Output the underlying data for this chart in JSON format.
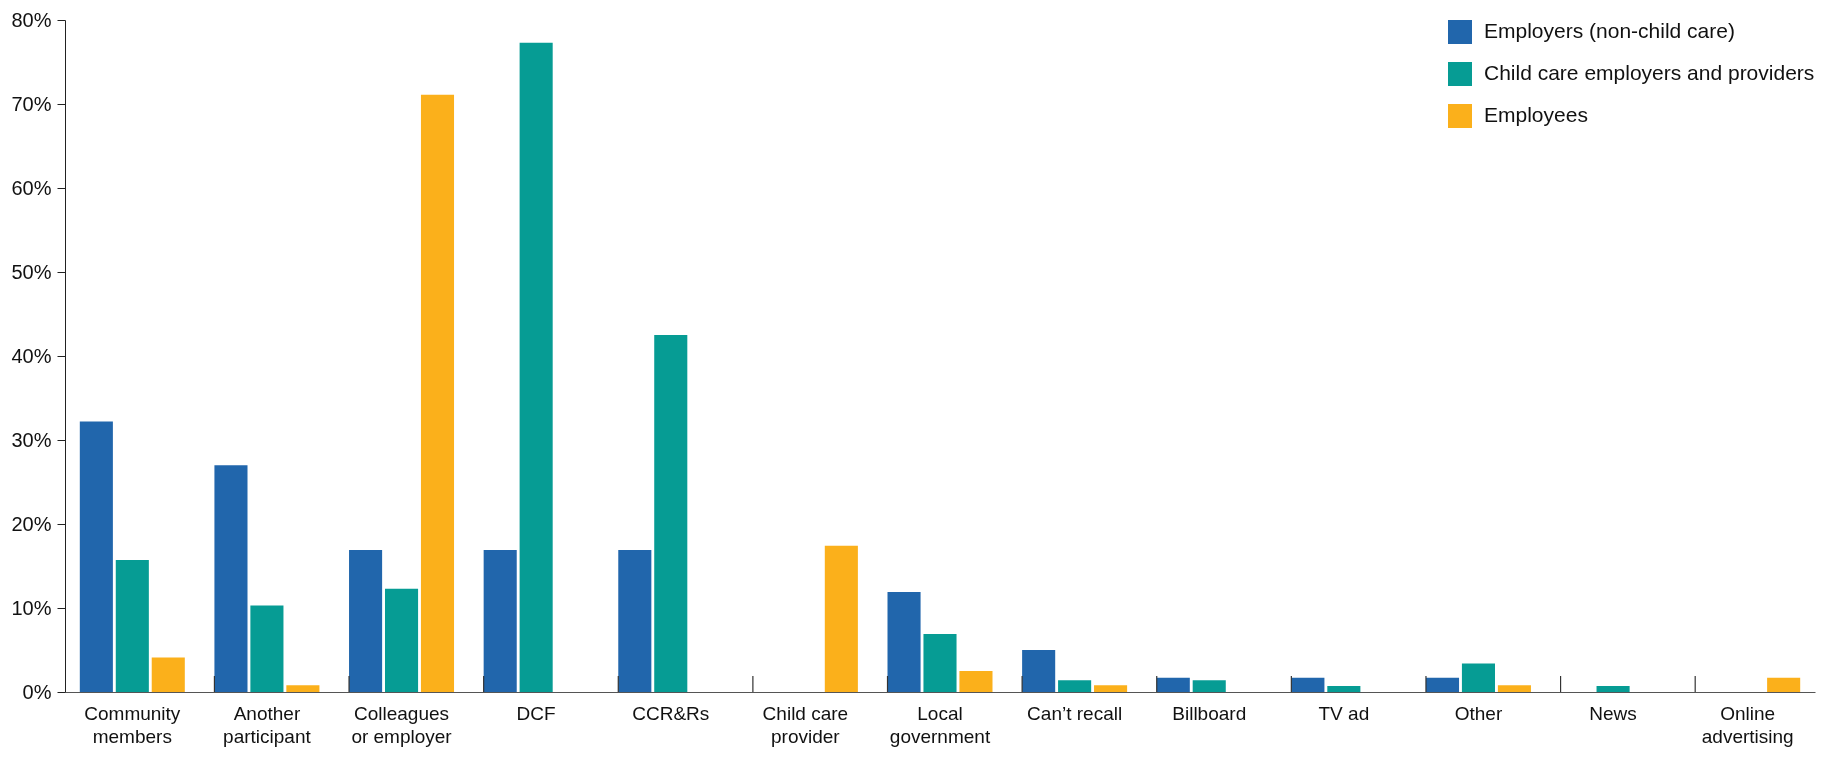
{
  "chart_data": {
    "type": "bar",
    "categories": [
      "Community members",
      "Another participant",
      "Colleagues or employer",
      "DCF",
      "CCR&Rs",
      "Child care provider",
      "Local government",
      "Can’t recall",
      "Billboard",
      "TV ad",
      "Other",
      "News",
      "Online advertising"
    ],
    "series": [
      {
        "name": "Employers (non-child care)",
        "color": "#2166ac",
        "values": [
          32.2,
          27,
          16.9,
          16.9,
          16.9,
          0,
          11.9,
          5,
          1.7,
          1.7,
          1.7,
          0,
          0
        ]
      },
      {
        "name": "Child care employers and providers",
        "color": "#069c94",
        "values": [
          15.7,
          10.3,
          12.3,
          77.3,
          42.5,
          0,
          6.9,
          1.4,
          1.4,
          0.7,
          3.4,
          0.7,
          0
        ]
      },
      {
        "name": "Employees",
        "color": "#fbb01b",
        "values": [
          4.1,
          0.8,
          71.1,
          0,
          0,
          17.4,
          2.5,
          0.8,
          0,
          0,
          0.8,
          0,
          1.7
        ]
      }
    ],
    "ylim": [
      0,
      80
    ],
    "yticks": [
      {
        "value": 0,
        "label": "0%"
      },
      {
        "value": 10,
        "label": "10%"
      },
      {
        "value": 20,
        "label": "20%"
      },
      {
        "value": 30,
        "label": "30%"
      },
      {
        "value": 40,
        "label": "40%"
      },
      {
        "value": 50,
        "label": "50%"
      },
      {
        "value": 60,
        "label": "60%"
      },
      {
        "value": 70,
        "label": "70%"
      },
      {
        "value": 80,
        "label": "80%"
      }
    ],
    "legend": "top right"
  }
}
